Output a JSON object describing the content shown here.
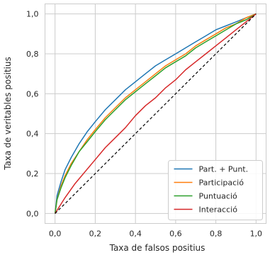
{
  "chart_data": {
    "type": "line",
    "title": "",
    "xlabel": "Taxa de falsos positius",
    "ylabel": "Taxa de veritables positius",
    "xlim": [
      -0.05,
      1.05
    ],
    "ylim": [
      -0.05,
      1.05
    ],
    "grid": true,
    "legend_position": "bottom-right",
    "xticks": [
      0.0,
      0.2,
      0.4,
      0.6,
      0.8,
      1.0
    ],
    "yticks": [
      0.0,
      0.2,
      0.4,
      0.6,
      0.8,
      1.0
    ],
    "xtick_labels": [
      "0,0",
      "0,2",
      "0,4",
      "0,6",
      "0,8",
      "1,0"
    ],
    "ytick_labels": [
      "0,0",
      "0,2",
      "0,4",
      "0,6",
      "0,8",
      "1,0"
    ],
    "series": [
      {
        "name": "Part. + Punt.",
        "color": "#1f77b4",
        "x": [
          0,
          0.01,
          0.03,
          0.05,
          0.08,
          0.12,
          0.16,
          0.2,
          0.25,
          0.3,
          0.35,
          0.4,
          0.45,
          0.5,
          0.55,
          0.6,
          0.65,
          0.7,
          0.75,
          0.8,
          0.85,
          0.9,
          0.95,
          1.0
        ],
        "y": [
          0,
          0.09,
          0.16,
          0.22,
          0.28,
          0.35,
          0.41,
          0.46,
          0.52,
          0.57,
          0.62,
          0.66,
          0.7,
          0.74,
          0.77,
          0.8,
          0.83,
          0.86,
          0.89,
          0.92,
          0.94,
          0.96,
          0.98,
          1.0
        ]
      },
      {
        "name": "Participació",
        "color": "#ff7f0e",
        "x": [
          0,
          0.01,
          0.03,
          0.05,
          0.08,
          0.12,
          0.16,
          0.2,
          0.25,
          0.3,
          0.35,
          0.4,
          0.45,
          0.5,
          0.55,
          0.6,
          0.65,
          0.7,
          0.75,
          0.8,
          0.85,
          0.9,
          0.95,
          1.0
        ],
        "y": [
          0,
          0.07,
          0.14,
          0.19,
          0.25,
          0.31,
          0.37,
          0.42,
          0.48,
          0.53,
          0.58,
          0.62,
          0.66,
          0.7,
          0.74,
          0.77,
          0.8,
          0.84,
          0.87,
          0.9,
          0.93,
          0.95,
          0.98,
          1.0
        ]
      },
      {
        "name": "Puntuació",
        "color": "#2ca02c",
        "x": [
          0,
          0.01,
          0.03,
          0.05,
          0.08,
          0.12,
          0.16,
          0.2,
          0.25,
          0.3,
          0.35,
          0.4,
          0.45,
          0.5,
          0.55,
          0.6,
          0.65,
          0.7,
          0.75,
          0.8,
          0.85,
          0.9,
          0.95,
          1.0
        ],
        "y": [
          0,
          0.07,
          0.13,
          0.18,
          0.24,
          0.31,
          0.36,
          0.41,
          0.47,
          0.52,
          0.57,
          0.61,
          0.65,
          0.69,
          0.73,
          0.76,
          0.79,
          0.83,
          0.86,
          0.89,
          0.92,
          0.95,
          0.97,
          1.0
        ]
      },
      {
        "name": "Interacció",
        "color": "#d62728",
        "x": [
          0,
          0.05,
          0.1,
          0.15,
          0.2,
          0.25,
          0.3,
          0.35,
          0.4,
          0.45,
          0.5,
          0.55,
          0.6,
          0.65,
          0.7,
          0.75,
          0.8,
          0.85,
          0.9,
          0.95,
          1.0
        ],
        "y": [
          0,
          0.08,
          0.15,
          0.21,
          0.27,
          0.33,
          0.38,
          0.43,
          0.49,
          0.54,
          0.58,
          0.63,
          0.67,
          0.72,
          0.76,
          0.8,
          0.84,
          0.88,
          0.92,
          0.96,
          1.0
        ]
      },
      {
        "name": "",
        "color": "#000000",
        "style": "dashed",
        "x": [
          0,
          1
        ],
        "y": [
          0,
          1
        ]
      }
    ]
  }
}
